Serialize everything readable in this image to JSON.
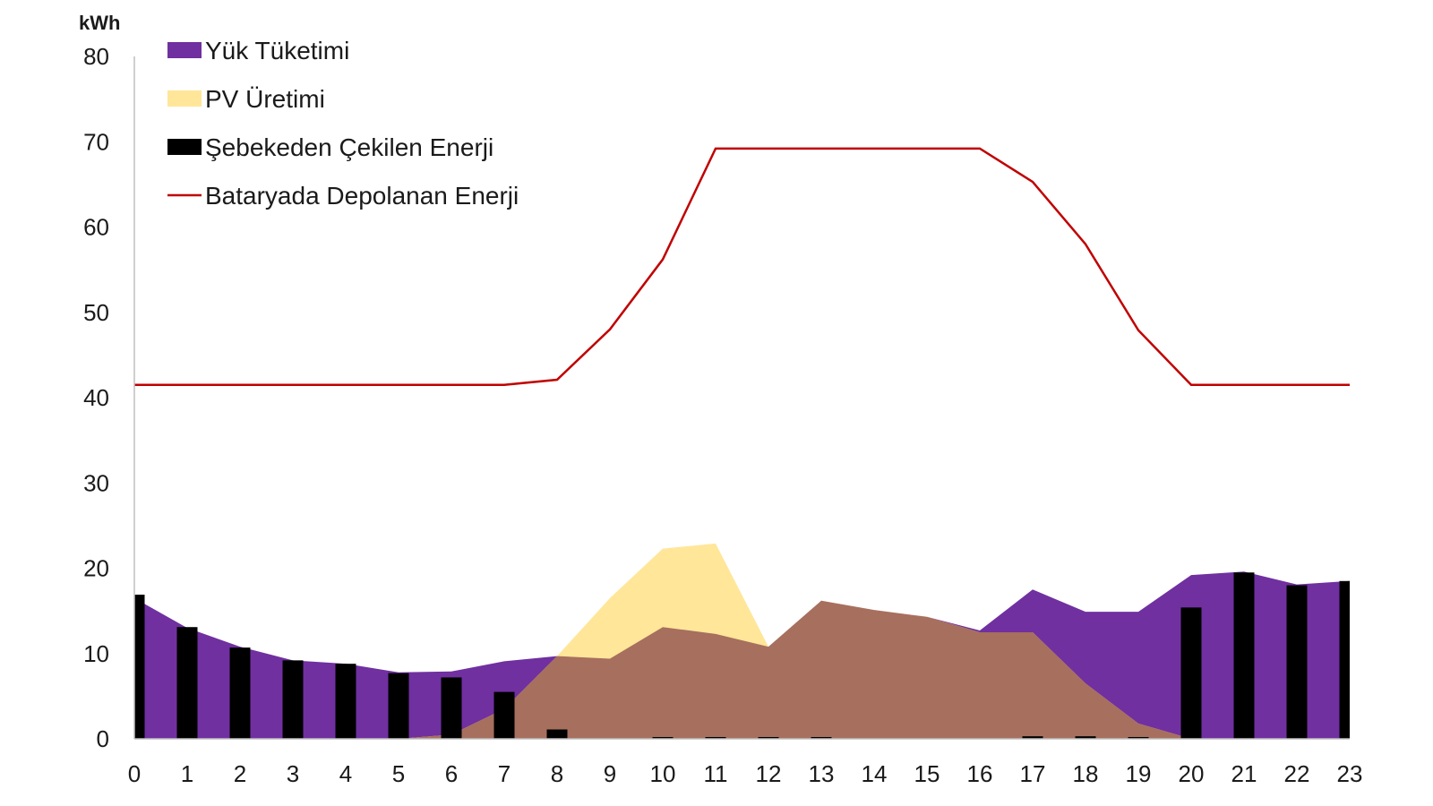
{
  "chart_data": {
    "type": "area",
    "ylabel": "kWh",
    "ylim": [
      0,
      80
    ],
    "yticks": [
      "0",
      "10",
      "20",
      "30",
      "40",
      "50",
      "60",
      "70",
      "80"
    ],
    "categories": [
      "0",
      "1",
      "2",
      "3",
      "4",
      "5",
      "6",
      "7",
      "8",
      "9",
      "10",
      "11",
      "12",
      "13",
      "14",
      "15",
      "16",
      "17",
      "18",
      "19",
      "20",
      "21",
      "22",
      "23"
    ],
    "grid": false,
    "legend_position": "top-left",
    "series": [
      {
        "name": "Yük Tüketimi",
        "kind": "area",
        "color": "#7030a0",
        "values": [
          16.5,
          13.0,
          10.8,
          9.2,
          8.8,
          7.8,
          7.9,
          9.1,
          9.7,
          9.4,
          13.1,
          12.3,
          10.8,
          16.2,
          15.1,
          14.3,
          12.7,
          17.5,
          14.9,
          14.9,
          19.2,
          19.6,
          18.1,
          18.5
        ]
      },
      {
        "name": "PV Üretimi",
        "kind": "area",
        "color": "#ffe699",
        "values": [
          0,
          0,
          0,
          0,
          0,
          0,
          0.5,
          3.5,
          9.7,
          16.5,
          22.3,
          22.9,
          10.8,
          16.2,
          15.1,
          14.3,
          12.5,
          12.5,
          6.5,
          1.8,
          0,
          0,
          0,
          0
        ]
      },
      {
        "name": "Şebekeden Çekilen Enerji",
        "kind": "bar",
        "color": "#000000",
        "values": [
          16.9,
          13.1,
          10.7,
          9.2,
          8.8,
          7.7,
          7.2,
          5.5,
          1.1,
          0,
          0.1,
          0.2,
          0.1,
          0.1,
          0,
          0,
          0,
          0.3,
          0.3,
          0.1,
          15.4,
          19.5,
          18.0,
          18.5
        ]
      },
      {
        "name": "Bataryada Depolanan Enerji",
        "kind": "line",
        "color": "#c00000",
        "values": [
          41.5,
          41.5,
          41.5,
          41.5,
          41.5,
          41.5,
          41.5,
          41.5,
          42.1,
          48.0,
          56.2,
          69.2,
          69.2,
          69.2,
          69.2,
          69.2,
          69.2,
          65.3,
          58.0,
          47.9,
          41.5,
          41.5,
          41.5,
          41.5
        ]
      }
    ],
    "overlap_color": "#a76f5e"
  }
}
